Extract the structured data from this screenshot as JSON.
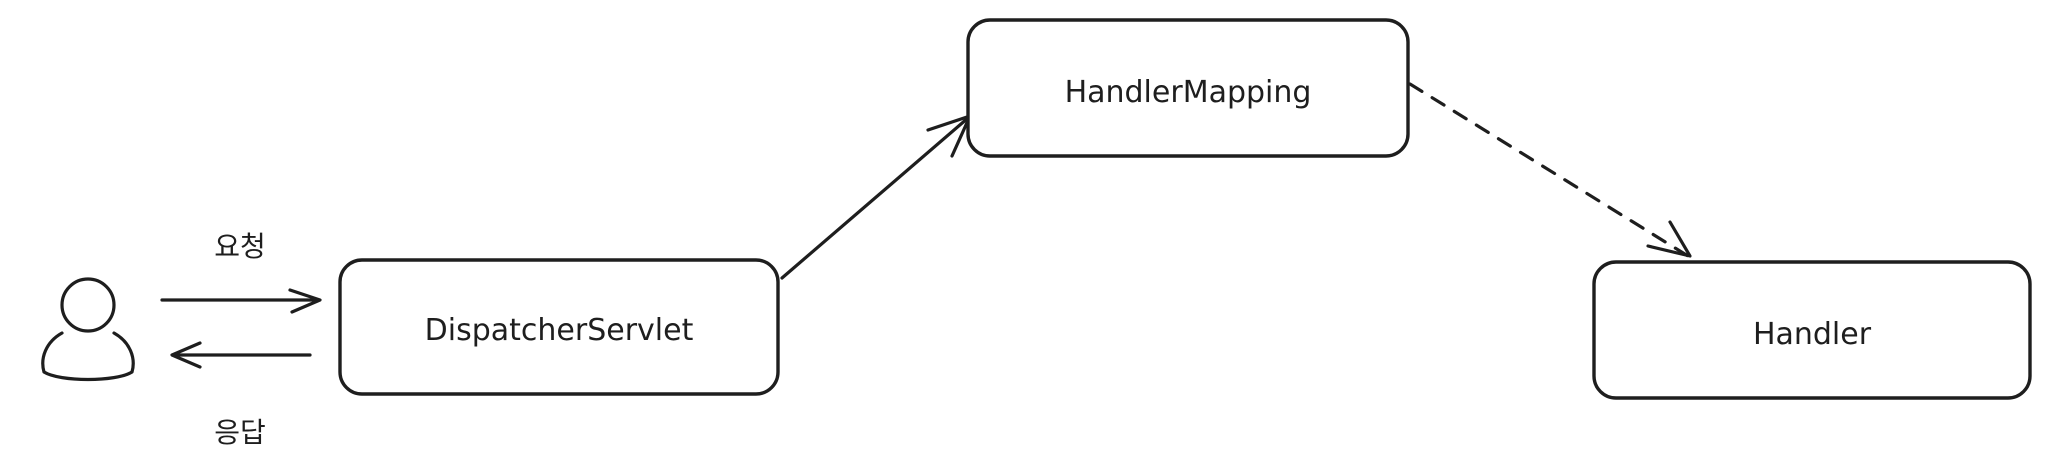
{
  "nodes": {
    "user": {
      "icon": "user-icon"
    },
    "dispatcher": {
      "label": "DispatcherServlet"
    },
    "handler_mapping": {
      "label": "HandlerMapping"
    },
    "handler": {
      "label": "Handler"
    }
  },
  "edges": {
    "request": {
      "label": "요청",
      "style": "solid"
    },
    "response": {
      "label": "응답",
      "style": "solid"
    },
    "dispatcher_to_mapping": {
      "style": "solid"
    },
    "mapping_to_handler": {
      "style": "dashed"
    }
  },
  "colors": {
    "stroke": "#1e1e1e",
    "background": "#ffffff"
  }
}
